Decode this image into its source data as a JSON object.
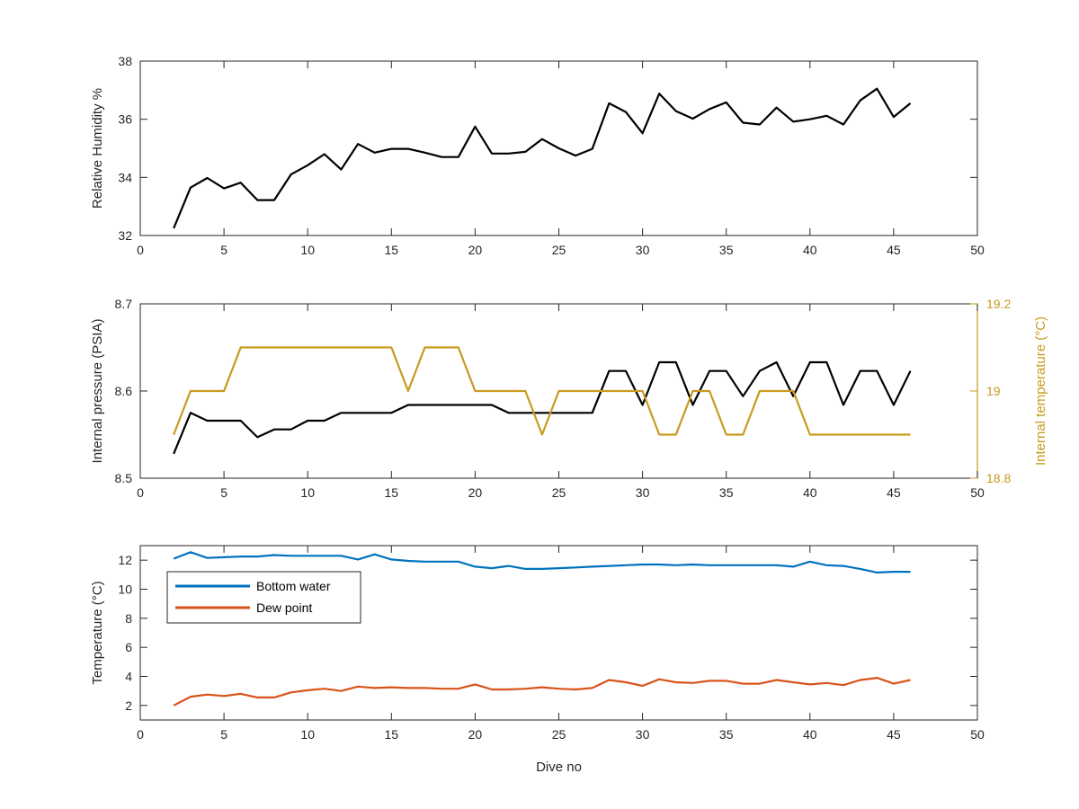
{
  "chart_data": [
    {
      "type": "line",
      "title": "",
      "xlabel": "",
      "ylabel": "Relative Humidity %",
      "xlim": [
        0,
        50
      ],
      "ylim": [
        32,
        38
      ],
      "xticks": [
        0,
        5,
        10,
        15,
        20,
        25,
        30,
        35,
        40,
        45,
        50
      ],
      "yticks": [
        32,
        34,
        36,
        38
      ],
      "grid": false,
      "series": [
        {
          "color": "#000000",
          "x": [
            2,
            3,
            4,
            5,
            6,
            7,
            8,
            9,
            10,
            11,
            12,
            13,
            14,
            15,
            16,
            17,
            18,
            19,
            20,
            21,
            22,
            23,
            24,
            25,
            26,
            27,
            28,
            29,
            30,
            31,
            32,
            33,
            34,
            35,
            36,
            37,
            38,
            39,
            40,
            41,
            42,
            43,
            44,
            45,
            46
          ],
          "y": [
            32.25,
            33.65,
            33.98,
            33.62,
            33.82,
            33.22,
            33.22,
            34.1,
            34.42,
            34.8,
            34.27,
            35.15,
            34.85,
            34.98,
            34.98,
            34.85,
            34.7,
            34.7,
            35.75,
            34.82,
            34.82,
            34.88,
            35.32,
            35.0,
            34.75,
            34.98,
            36.55,
            36.25,
            35.52,
            36.88,
            36.28,
            36.02,
            36.35,
            36.58,
            35.88,
            35.82,
            36.4,
            35.92,
            36.0,
            36.12,
            35.82,
            36.65,
            37.05,
            36.08,
            36.55
          ]
        }
      ]
    },
    {
      "type": "line",
      "title": "",
      "xlabel": "",
      "ylabel": "Internal pressure (PSIA)",
      "ylabel_right": "Internal temperature (°C)",
      "xlim": [
        0,
        50
      ],
      "ylim": [
        8.5,
        8.7
      ],
      "ylim_right": [
        18.8,
        19.2
      ],
      "xticks": [
        0,
        5,
        10,
        15,
        20,
        25,
        30,
        35,
        40,
        45,
        50
      ],
      "yticks": [
        "8.5",
        "8.6",
        "8.7"
      ],
      "yticks_right": [
        "18.8",
        "19",
        "19.2"
      ],
      "grid": false,
      "series": [
        {
          "axis": "left",
          "color": "#000000",
          "x": [
            2,
            3,
            4,
            5,
            6,
            7,
            8,
            9,
            10,
            11,
            12,
            13,
            14,
            15,
            16,
            17,
            18,
            19,
            20,
            21,
            22,
            23,
            24,
            25,
            26,
            27,
            28,
            29,
            30,
            31,
            32,
            33,
            34,
            35,
            36,
            37,
            38,
            39,
            40,
            41,
            42,
            43,
            44,
            45,
            46
          ],
          "y": [
            8.528,
            8.575,
            8.566,
            8.566,
            8.566,
            8.547,
            8.556,
            8.556,
            8.566,
            8.566,
            8.575,
            8.575,
            8.575,
            8.575,
            8.584,
            8.584,
            8.584,
            8.584,
            8.584,
            8.584,
            8.575,
            8.575,
            8.575,
            8.575,
            8.575,
            8.575,
            8.623,
            8.623,
            8.584,
            8.633,
            8.633,
            8.584,
            8.623,
            8.623,
            8.594,
            8.623,
            8.633,
            8.594,
            8.633,
            8.633,
            8.584,
            8.623,
            8.623,
            8.584,
            8.623
          ]
        },
        {
          "axis": "right",
          "color": "#C89A1E",
          "x": [
            2,
            3,
            4,
            5,
            6,
            7,
            8,
            9,
            10,
            11,
            12,
            13,
            14,
            15,
            16,
            17,
            18,
            19,
            20,
            21,
            22,
            23,
            24,
            25,
            26,
            27,
            28,
            29,
            30,
            31,
            32,
            33,
            34,
            35,
            36,
            37,
            38,
            39,
            40,
            41,
            42,
            43,
            44,
            45,
            46
          ],
          "y": [
            18.9,
            19.0,
            19.0,
            19.0,
            19.1,
            19.1,
            19.1,
            19.1,
            19.1,
            19.1,
            19.1,
            19.1,
            19.1,
            19.1,
            19.0,
            19.1,
            19.1,
            19.1,
            19.0,
            19.0,
            19.0,
            19.0,
            18.9,
            19.0,
            19.0,
            19.0,
            19.0,
            19.0,
            19.0,
            18.9,
            18.9,
            19.0,
            19.0,
            18.9,
            18.9,
            19.0,
            19.0,
            19.0,
            18.9,
            18.9,
            18.9,
            18.9,
            18.9,
            18.9,
            18.9
          ]
        }
      ]
    },
    {
      "type": "line",
      "title": "",
      "xlabel": "Dive no",
      "ylabel": "Temperature (°C)",
      "xlim": [
        0,
        50
      ],
      "ylim": [
        1,
        13
      ],
      "xticks": [
        0,
        5,
        10,
        15,
        20,
        25,
        30,
        35,
        40,
        45,
        50
      ],
      "yticks": [
        2,
        4,
        6,
        8,
        10,
        12
      ],
      "grid": false,
      "legend": "top-left",
      "series": [
        {
          "name": "Bottom water",
          "color": "#0072BD",
          "x": [
            2,
            3,
            4,
            5,
            6,
            7,
            8,
            9,
            10,
            11,
            12,
            13,
            14,
            15,
            16,
            17,
            18,
            19,
            20,
            21,
            22,
            23,
            24,
            25,
            26,
            27,
            28,
            29,
            30,
            31,
            32,
            33,
            34,
            35,
            36,
            37,
            38,
            39,
            40,
            41,
            42,
            43,
            44,
            45,
            46
          ],
          "y": [
            12.1,
            12.55,
            12.15,
            12.2,
            12.25,
            12.25,
            12.35,
            12.3,
            12.3,
            12.3,
            12.3,
            12.05,
            12.4,
            12.05,
            11.95,
            11.9,
            11.9,
            11.9,
            11.55,
            11.45,
            11.6,
            11.4,
            11.4,
            11.45,
            11.5,
            11.55,
            11.6,
            11.65,
            11.7,
            11.7,
            11.65,
            11.7,
            11.65,
            11.65,
            11.65,
            11.65,
            11.65,
            11.55,
            11.9,
            11.65,
            11.6,
            11.4,
            11.15,
            11.2,
            11.2
          ]
        },
        {
          "name": "Dew point",
          "color": "#D95319",
          "x": [
            2,
            3,
            4,
            5,
            6,
            7,
            8,
            9,
            10,
            11,
            12,
            13,
            14,
            15,
            16,
            17,
            18,
            19,
            20,
            21,
            22,
            23,
            24,
            25,
            26,
            27,
            28,
            29,
            30,
            31,
            32,
            33,
            34,
            35,
            36,
            37,
            38,
            39,
            40,
            41,
            42,
            43,
            44,
            45,
            46
          ],
          "y": [
            2.0,
            2.6,
            2.75,
            2.65,
            2.8,
            2.55,
            2.55,
            2.9,
            3.05,
            3.15,
            3.0,
            3.3,
            3.2,
            3.25,
            3.2,
            3.2,
            3.15,
            3.15,
            3.45,
            3.1,
            3.1,
            3.15,
            3.25,
            3.15,
            3.1,
            3.2,
            3.75,
            3.6,
            3.35,
            3.8,
            3.6,
            3.55,
            3.7,
            3.7,
            3.5,
            3.5,
            3.75,
            3.6,
            3.45,
            3.55,
            3.4,
            3.75,
            3.9,
            3.5,
            3.75
          ]
        }
      ]
    }
  ]
}
